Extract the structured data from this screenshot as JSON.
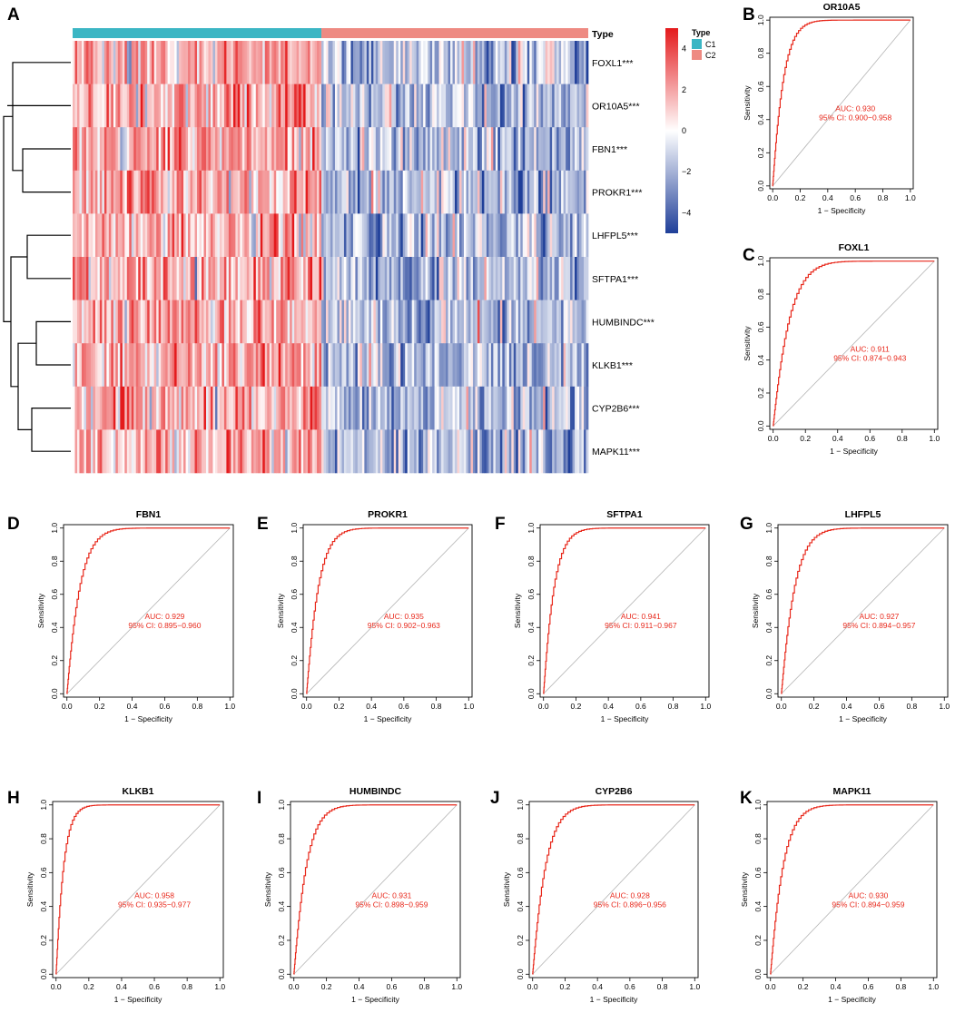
{
  "colors": {
    "roc": "#e8291c",
    "c1": "#3bb6c4",
    "c2": "#ee8a82",
    "high": "#e41a1c",
    "mid": "#ffffff",
    "low": "#1f3f99",
    "diag": "#b4b4b4"
  },
  "chart_data": [
    {
      "id": "A",
      "type": "heatmap",
      "panel_letter": "A",
      "annotation_label": "Type",
      "groups": [
        {
          "name": "C1",
          "count": 110
        },
        {
          "name": "C2",
          "count": 118
        }
      ],
      "rows": [
        "FOXL1***",
        "OR10A5***",
        "FBN1***",
        "PROKR1***",
        "LHFPL5***",
        "SFTPA1***",
        "HUMBINDC***",
        "KLKB1***",
        "CYP2B6***",
        "MAPK11***"
      ],
      "color_scale": {
        "ticks": [
          4,
          2,
          0,
          -2,
          -4
        ],
        "tick_labels": [
          "4",
          "2",
          "0",
          "−2",
          "−4"
        ],
        "range": [
          -5,
          5
        ]
      },
      "legend": {
        "title": "Type",
        "entries": [
          "C1",
          "C2"
        ]
      }
    },
    {
      "id": "B",
      "type": "line",
      "panel_letter": "B",
      "title": "OR10A5",
      "auc": 0.93,
      "auc_label": "AUC: 0.930",
      "ci_label": "95% CI: 0.900−0.958"
    },
    {
      "id": "C",
      "type": "line",
      "panel_letter": "C",
      "title": "FOXL1",
      "auc": 0.911,
      "auc_label": "AUC: 0.911",
      "ci_label": "95% CI: 0.874−0.943"
    },
    {
      "id": "D",
      "type": "line",
      "panel_letter": "D",
      "title": "FBN1",
      "auc": 0.929,
      "auc_label": "AUC: 0.929",
      "ci_label": "95% CI: 0.895−0.960"
    },
    {
      "id": "E",
      "type": "line",
      "panel_letter": "E",
      "title": "PROKR1",
      "auc": 0.935,
      "auc_label": "AUC: 0.935",
      "ci_label": "95% CI: 0.902−0.963"
    },
    {
      "id": "F",
      "type": "line",
      "panel_letter": "F",
      "title": "SFTPA1",
      "auc": 0.941,
      "auc_label": "AUC: 0.941",
      "ci_label": "95% CI: 0.911−0.967"
    },
    {
      "id": "G",
      "type": "line",
      "panel_letter": "G",
      "title": "LHFPL5",
      "auc": 0.927,
      "auc_label": "AUC: 0.927",
      "ci_label": "95% CI: 0.894−0.957"
    },
    {
      "id": "H",
      "type": "line",
      "panel_letter": "H",
      "title": "KLKB1",
      "auc": 0.958,
      "auc_label": "AUC: 0.958",
      "ci_label": "95% CI: 0.935−0.977"
    },
    {
      "id": "I",
      "type": "line",
      "panel_letter": "I",
      "title": "HUMBINDC",
      "auc": 0.931,
      "auc_label": "AUC: 0.931",
      "ci_label": "95% CI: 0.898−0.959"
    },
    {
      "id": "J",
      "type": "line",
      "panel_letter": "J",
      "title": "CYP2B6",
      "auc": 0.928,
      "auc_label": "AUC: 0.928",
      "ci_label": "95% CI: 0.896−0.956"
    },
    {
      "id": "K",
      "type": "line",
      "panel_letter": "K",
      "title": "MAPK11",
      "auc": 0.93,
      "auc_label": "AUC: 0.930",
      "ci_label": "95% CI: 0.894−0.959"
    }
  ],
  "roc_axes": {
    "xlabel": "1 − Specificity",
    "ylabel": "Sensitivity",
    "xlim": [
      0,
      1
    ],
    "ylim": [
      0,
      1
    ],
    "ticks": [
      0,
      0.2,
      0.4,
      0.6,
      0.8,
      1.0
    ],
    "tick_labels": [
      "0.0",
      "0.2",
      "0.4",
      "0.6",
      "0.8",
      "1.0"
    ]
  }
}
